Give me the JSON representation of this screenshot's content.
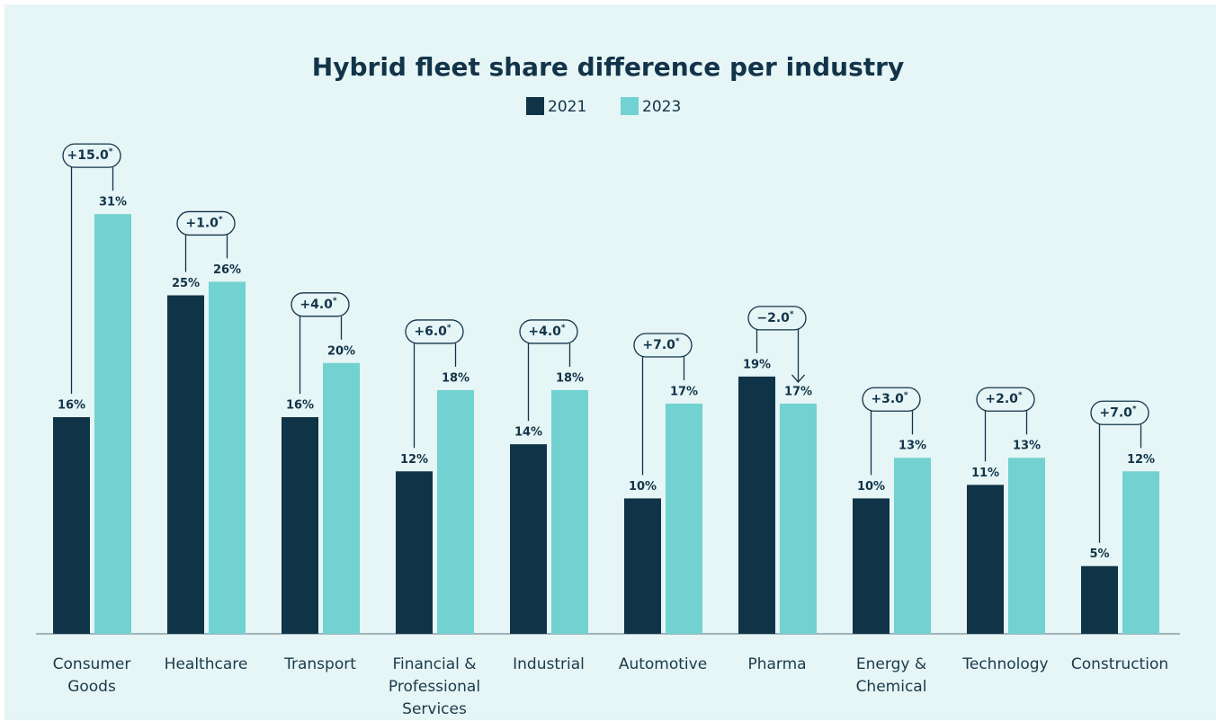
{
  "chart_data": {
    "type": "bar",
    "title": "Hybrid fleet share difference per industry",
    "categories": [
      "Consumer Goods",
      "Healthcare",
      "Transport",
      "Financial & Professional Services",
      "Industrial",
      "Automotive",
      "Pharma",
      "Energy & Chemical",
      "Technology",
      "Construction"
    ],
    "series": [
      {
        "name": "2021",
        "color": "#0f3347",
        "values": [
          16,
          25,
          16,
          12,
          14,
          10,
          19,
          10,
          11,
          5
        ],
        "value_labels": [
          "16%",
          "25%",
          "16%",
          "12%",
          "14%",
          "10%",
          "19%",
          "10%",
          "11%",
          "5%"
        ]
      },
      {
        "name": "2023",
        "color": "#72d1d1",
        "values": [
          31,
          26,
          20,
          18,
          18,
          17,
          17,
          13,
          13,
          12
        ],
        "value_labels": [
          "31%",
          "26%",
          "20%",
          "18%",
          "18%",
          "17%",
          "17%",
          "13%",
          "13%",
          "12%"
        ]
      }
    ],
    "diff_labels": [
      "+15.0",
      "+1.0",
      "+4.0",
      "+6.0",
      "+4.0",
      "+7.0",
      "−2.0",
      "+3.0",
      "+2.0",
      "+7.0"
    ],
    "diff_marker": "*",
    "legend": "top"
  }
}
